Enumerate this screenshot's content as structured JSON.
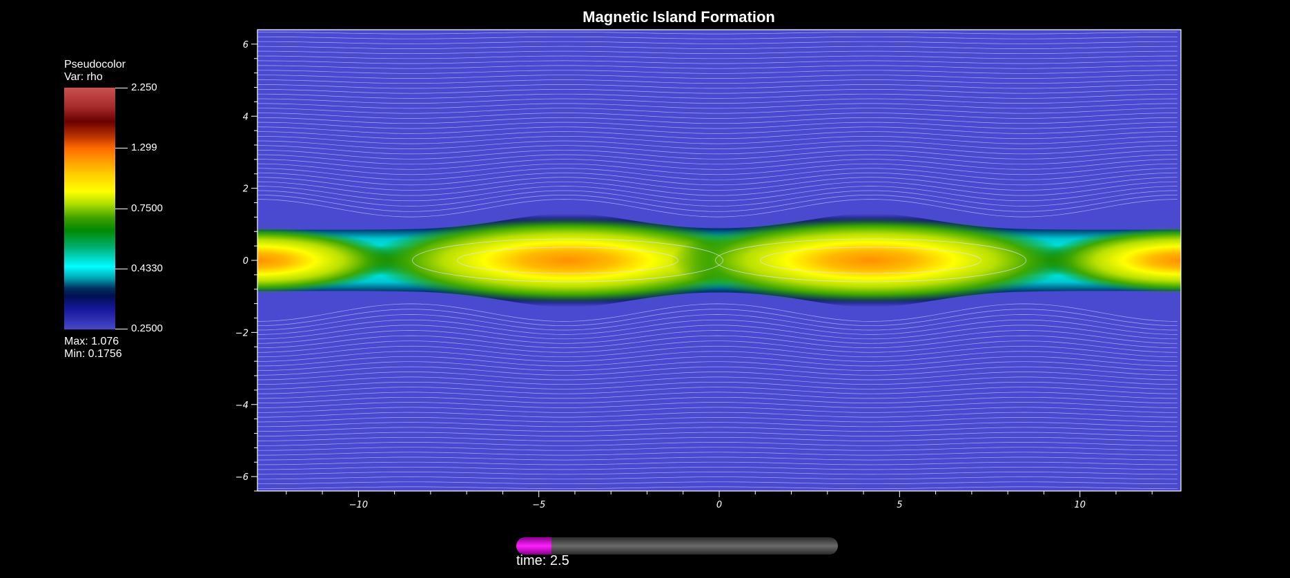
{
  "chart_data": {
    "type": "heatmap",
    "title": "Magnetic Island Formation",
    "xlabel": "",
    "ylabel": "",
    "xlim": [
      -12.8,
      12.8
    ],
    "ylim": [
      -6.4,
      6.4
    ],
    "x_ticks": [
      -10,
      -5,
      0,
      5,
      10
    ],
    "y_ticks": [
      -6,
      -4,
      -2,
      0,
      2,
      4,
      6
    ],
    "variable": "rho",
    "colorbar": {
      "header": "Pseudocolor",
      "var_label": "Var: rho",
      "labels": [
        "2.250",
        "1.299",
        "0.7500",
        "0.4330",
        "0.2500"
      ],
      "max_text": "Max:  1.076",
      "min_text": "Min:  0.1756"
    },
    "island_centers_x": [
      -4.2,
      4.2
    ],
    "x_points_x": [
      -8.5,
      0,
      8.5
    ],
    "background_color": "#4a4ad0",
    "contour_color": "#c8c8ff",
    "grid": false
  },
  "time_slider": {
    "progress": 0.11,
    "label": "time: 2.5",
    "fill_color": "#ff20ff"
  }
}
